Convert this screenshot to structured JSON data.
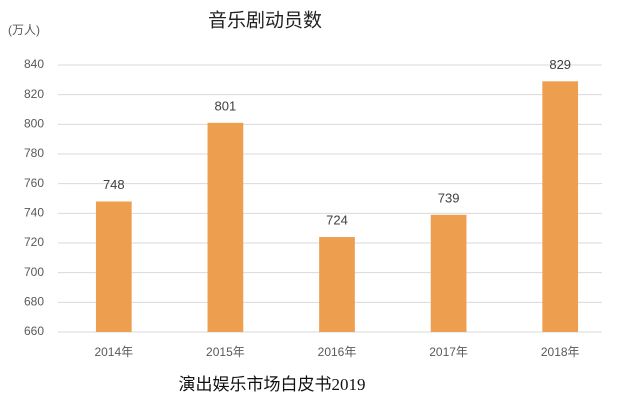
{
  "chart_data": {
    "type": "bar",
    "title": "音乐剧动员数",
    "y_label": "(万人)",
    "source": "演出娱乐市场白皮书2019",
    "categories": [
      "2014年",
      "2015年",
      "2016年",
      "2017年",
      "2018年"
    ],
    "values": [
      748,
      801,
      724,
      739,
      829
    ],
    "color": "#ee9e4f",
    "ylim": [
      660,
      840
    ],
    "yticks": [
      660,
      680,
      700,
      720,
      740,
      760,
      780,
      800,
      820,
      840
    ],
    "grid": true
  }
}
